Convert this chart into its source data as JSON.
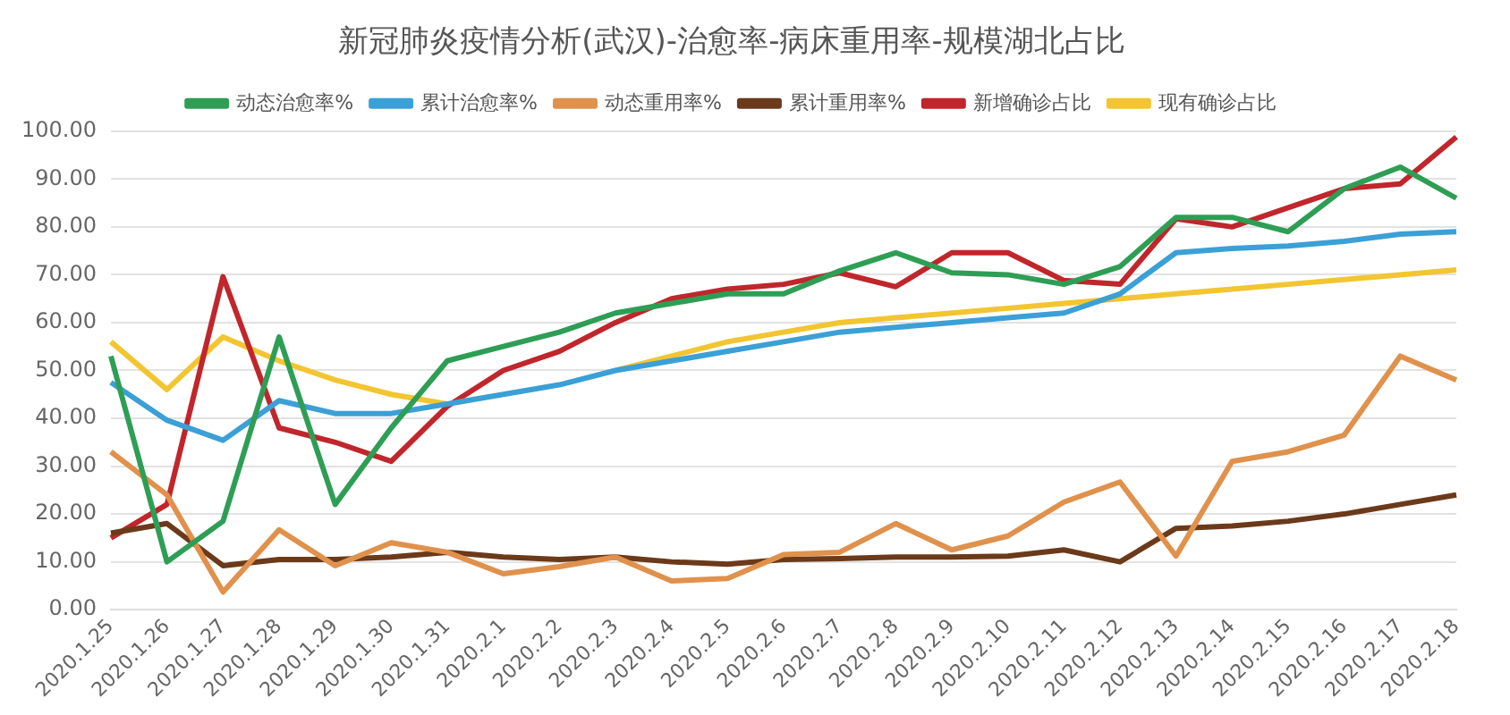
{
  "chart_data": {
    "type": "line",
    "title": "新冠肺炎疫情分析(武汉)-治愈率-病床重用率-规模湖北占比",
    "categories": [
      "2020.1.25",
      "2020.1.26",
      "2020.1.27",
      "2020.1.28",
      "2020.1.29",
      "2020.1.30",
      "2020.1.31",
      "2020.2.1",
      "2020.2.2",
      "2020.2.3",
      "2020.2.4",
      "2020.2.5",
      "2020.2.6",
      "2020.2.7",
      "2020.2.8",
      "2020.2.9",
      "2020.2.10",
      "2020.2.11",
      "2020.2.12",
      "2020.2.13",
      "2020.2.14",
      "2020.2.15",
      "2020.2.16",
      "2020.2.17",
      "2020.2.18"
    ],
    "series": [
      {
        "name": "动态治愈率%",
        "color": "#2e9e55",
        "values": [
          53,
          10,
          18.5,
          57,
          22,
          38,
          52,
          55,
          58,
          62,
          64,
          66,
          66,
          70.8,
          74.6,
          70.4,
          70,
          68,
          71.7,
          82,
          82,
          79,
          88,
          92.5,
          86
        ]
      },
      {
        "name": "累计治愈率%",
        "color": "#3ba0d6",
        "values": [
          47.5,
          39.6,
          35.4,
          43.7,
          41,
          41,
          43,
          45,
          47,
          50,
          52,
          54,
          56,
          58,
          59,
          60,
          61,
          62,
          66,
          74.6,
          75.5,
          76,
          77,
          78.5,
          79
        ]
      },
      {
        "name": "动态重用率%",
        "color": "#e0914c",
        "values": [
          33,
          24,
          3.7,
          16.7,
          9.2,
          14,
          12,
          7.5,
          9,
          11,
          6,
          6.5,
          11.5,
          12,
          18,
          12.5,
          15.4,
          22.5,
          26.7,
          11.2,
          31,
          33,
          36.5,
          53,
          48
        ]
      },
      {
        "name": "累计重用率%",
        "color": "#6b3a1a",
        "values": [
          16,
          18,
          9.2,
          10.5,
          10.5,
          11,
          12,
          11,
          10.5,
          11,
          10,
          9.5,
          10.5,
          10.7,
          11,
          11,
          11.2,
          12.5,
          10,
          17,
          17.5,
          18.5,
          20,
          22,
          24
        ]
      },
      {
        "name": "新增确诊占比",
        "color": "#c0262b",
        "values": [
          15,
          22,
          69.6,
          38,
          35,
          31,
          42.5,
          50,
          54,
          60,
          65,
          67,
          68,
          70.4,
          67.5,
          74.6,
          74.6,
          68.8,
          68,
          81.7,
          80,
          84,
          88,
          89,
          98.8
        ]
      },
      {
        "name": "现有确诊占比",
        "color": "#f2c531",
        "values": [
          56,
          46,
          57,
          52,
          48,
          45,
          43,
          null,
          null,
          50,
          53,
          56,
          58,
          60,
          61,
          62,
          63,
          64,
          65,
          66,
          67,
          68,
          69,
          70,
          71
        ]
      }
    ],
    "ylim": [
      0,
      100
    ],
    "yticks": [
      {
        "value": 0,
        "label": "0.00"
      },
      {
        "value": 10,
        "label": "10.00"
      },
      {
        "value": 20,
        "label": "20.00"
      },
      {
        "value": 30,
        "label": "30.00"
      },
      {
        "value": 40,
        "label": "40.00"
      },
      {
        "value": 50,
        "label": "50.00"
      },
      {
        "value": 60,
        "label": "60.00"
      },
      {
        "value": 70,
        "label": "70.00"
      },
      {
        "value": 80,
        "label": "80.00"
      },
      {
        "value": 90,
        "label": "90.00"
      },
      {
        "value": 100,
        "label": "100.00"
      }
    ],
    "grid": "y",
    "legend": "top",
    "marker": "none",
    "line_style": "solid"
  }
}
